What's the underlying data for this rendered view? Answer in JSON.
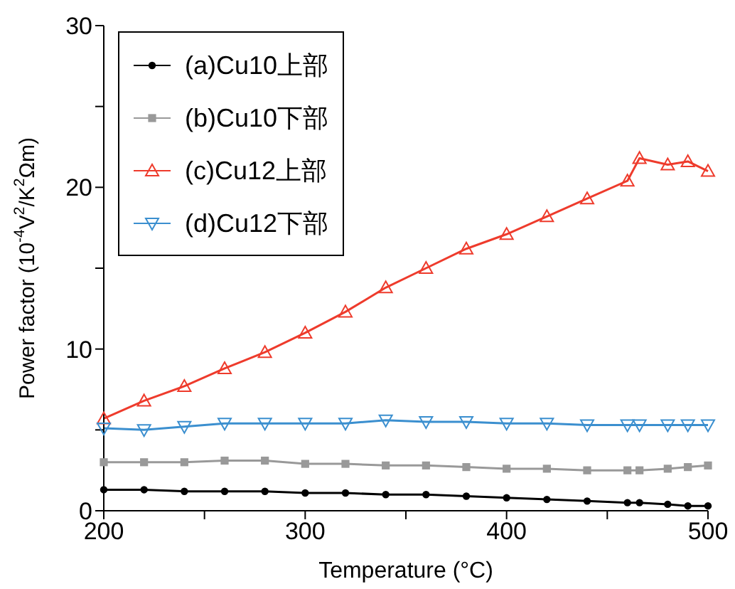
{
  "chart_data": {
    "type": "line",
    "xlabel": "Temperature (°C)",
    "ylabel": "Power factor (10$^{-4}$V$^{2}$/K$^{2}$Ωm)",
    "xlim": [
      200,
      500
    ],
    "xticks": [
      200,
      {
        "value": 250,
        "label": null
      },
      300,
      {
        "value": 350,
        "label": null
      },
      400,
      {
        "value": 450,
        "label": null
      },
      500
    ],
    "ylim": [
      0,
      30
    ],
    "yticks": [
      0,
      {
        "value": 5,
        "label": null
      },
      10,
      {
        "value": 15,
        "label": null
      },
      20,
      {
        "value": 25,
        "label": null
      },
      30
    ],
    "grid": false,
    "legend": "top left",
    "x": [
      200,
      220,
      240,
      260,
      280,
      300,
      320,
      340,
      360,
      380,
      400,
      420,
      440,
      460,
      466,
      480,
      490,
      500
    ],
    "series": [
      {
        "name": "(a)Cu10上部",
        "color": "#000000",
        "marker": "circle",
        "values": [
          1.3,
          1.3,
          1.2,
          1.2,
          1.2,
          1.1,
          1.1,
          1.0,
          1.0,
          0.9,
          0.8,
          0.7,
          0.6,
          0.5,
          0.5,
          0.4,
          0.3,
          0.3
        ]
      },
      {
        "name": "(b)Cu10下部",
        "color": "#999999",
        "marker": "square",
        "values": [
          3.0,
          3.0,
          3.0,
          3.1,
          3.1,
          2.9,
          2.9,
          2.8,
          2.8,
          2.7,
          2.6,
          2.6,
          2.5,
          2.5,
          2.5,
          2.6,
          2.7,
          2.8
        ]
      },
      {
        "name": "(c)Cu12上部",
        "color": "#ee3b2c",
        "marker": "triangle",
        "values": [
          5.7,
          6.8,
          7.7,
          8.8,
          9.8,
          11.0,
          12.3,
          13.8,
          15.0,
          16.2,
          17.1,
          18.2,
          19.3,
          20.4,
          21.8,
          21.4,
          21.6,
          21.0
        ]
      },
      {
        "name": "(d)Cu12下部",
        "color": "#3b8fcf",
        "marker": "triangle-down",
        "values": [
          5.1,
          5.0,
          5.2,
          5.4,
          5.4,
          5.4,
          5.4,
          5.6,
          5.5,
          5.5,
          5.4,
          5.4,
          5.3,
          5.3,
          5.3,
          5.3,
          5.3,
          5.3
        ]
      }
    ]
  }
}
